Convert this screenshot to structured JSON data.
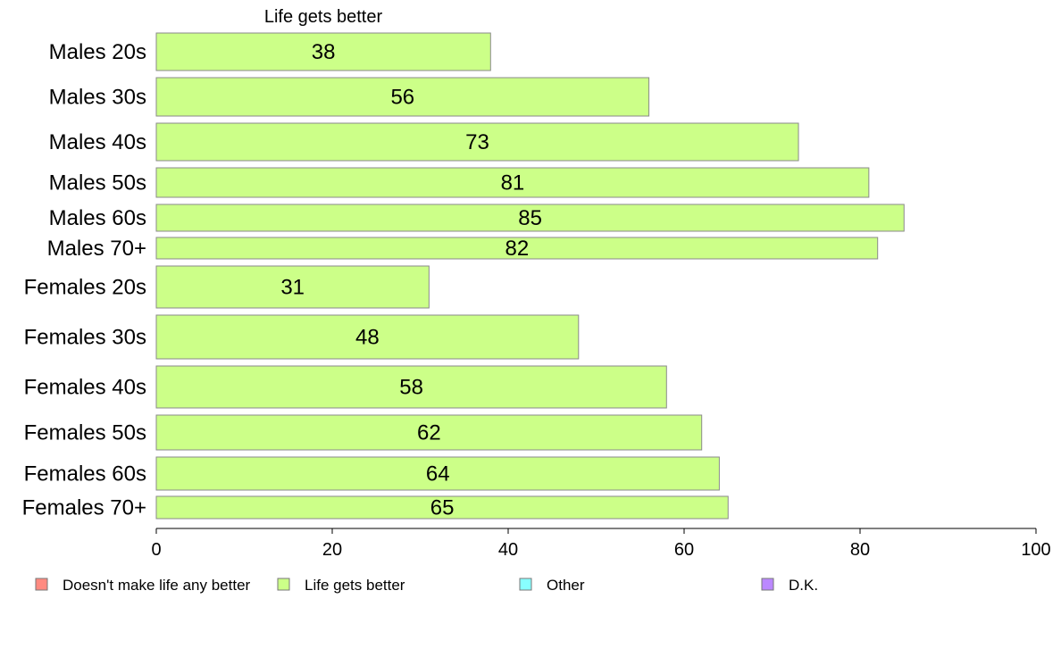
{
  "chart_data": {
    "type": "bar",
    "orientation": "horizontal",
    "column_title": "Life gets better",
    "categories": [
      "Males 20s",
      "Males 30s",
      "Males 40s",
      "Males 50s",
      "Males 60s",
      "Males 70+",
      "Females 20s",
      "Females 30s",
      "Females 40s",
      "Females 50s",
      "Females 60s",
      "Females 70+"
    ],
    "series": [
      {
        "name": "Life gets better",
        "values": [
          38,
          56,
          73,
          81,
          85,
          82,
          31,
          48,
          58,
          62,
          64,
          65
        ],
        "color": "#ccff88"
      }
    ],
    "xlim": [
      0,
      100
    ],
    "xticks": [
      0,
      20,
      40,
      60,
      80,
      100
    ],
    "legend": [
      {
        "label": "Doesn't make life any better",
        "color": "#ff8a80"
      },
      {
        "label": "Life gets better",
        "color": "#ccff88"
      },
      {
        "label": "Other",
        "color": "#88ffff"
      },
      {
        "label": "D.K.",
        "color": "#bb88ff"
      }
    ],
    "legend_position": "bottom",
    "grid": false
  }
}
